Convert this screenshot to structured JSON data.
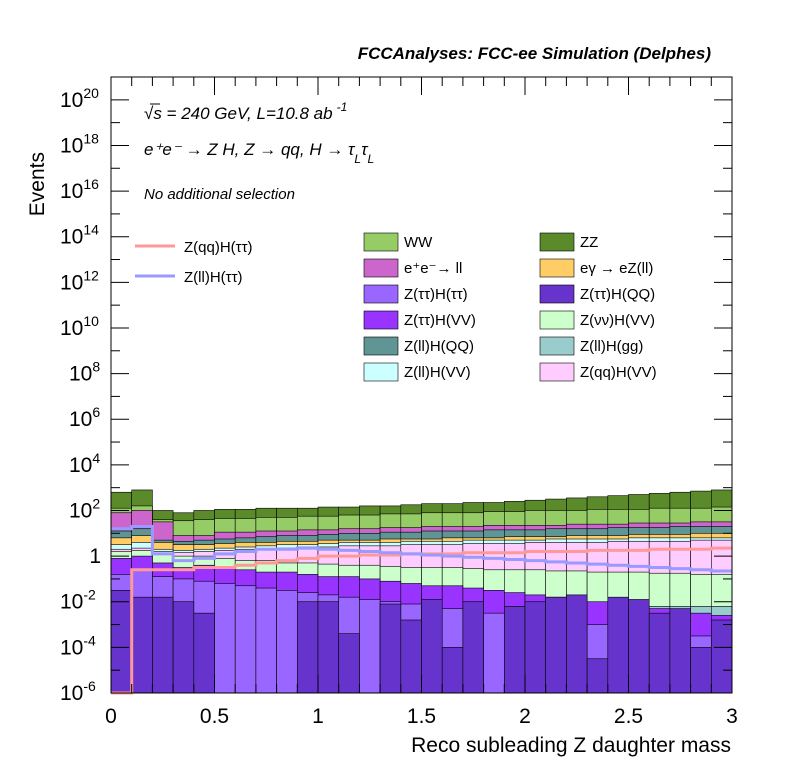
{
  "chart_data": {
    "type": "area",
    "header": "FCCAnalyses: FCC-ee Simulation (Delphes)",
    "annotation_energy": "√s = 240 GeV, L=10.8 ab",
    "annotation_energy_exp": "-1",
    "annotation_process": "e⁺e⁻ → Z H, Z → qq, H → τ",
    "annotation_process_sub": "L",
    "annotation_process_tau2": "τ",
    "annotation_selection": "No additional selection",
    "xlabel": "Reco subleading Z daughter mass",
    "ylabel": "Events",
    "xlim": [
      0,
      3
    ],
    "ylog": true,
    "ylim_exp": [
      -6,
      21
    ],
    "y_tick_exponents": [
      -6,
      -4,
      -2,
      0,
      2,
      4,
      6,
      8,
      10,
      12,
      14,
      16,
      18,
      20
    ],
    "y_tick_labels": {
      "-6": [
        "10",
        "-6"
      ],
      "-4": [
        "10",
        "-4"
      ],
      "-2": [
        "10",
        "-2"
      ],
      "0": [
        "1",
        ""
      ],
      "2": [
        "10",
        "2"
      ],
      "4": [
        "10",
        "4"
      ],
      "6": [
        "10",
        "6"
      ],
      "8": [
        "10",
        "8"
      ],
      "10": [
        "10",
        "10"
      ],
      "12": [
        "10",
        "12"
      ],
      "14": [
        "10",
        "14"
      ],
      "16": [
        "10",
        "16"
      ],
      "18": [
        "10",
        "18"
      ],
      "20": [
        "10",
        "20"
      ]
    },
    "x_ticks": [
      0,
      0.5,
      1,
      1.5,
      2,
      2.5,
      3
    ],
    "x_tick_labels": [
      "0",
      "0.5",
      "1",
      "1.5",
      "2",
      "2.5",
      "3"
    ],
    "n_bins": 30,
    "stack_series": [
      {
        "name": "ZZ",
        "color": "#5a8a2a",
        "log_top": [
          2.8,
          2.9,
          2.0,
          1.9,
          2.0,
          2.05,
          2.05,
          2.1,
          2.1,
          2.1,
          2.15,
          2.15,
          2.2,
          2.2,
          2.25,
          2.3,
          2.3,
          2.35,
          2.35,
          2.4,
          2.45,
          2.5,
          2.55,
          2.6,
          2.65,
          2.7,
          2.75,
          2.8,
          2.85,
          2.9
        ]
      },
      {
        "name": "WW",
        "color": "#96cc66",
        "log_top": [
          2.1,
          2.2,
          1.6,
          1.55,
          1.6,
          1.65,
          1.65,
          1.7,
          1.7,
          1.75,
          1.75,
          1.8,
          1.8,
          1.85,
          1.85,
          1.9,
          1.9,
          1.9,
          1.95,
          1.95,
          2.0,
          2.0,
          2.0,
          2.05,
          2.05,
          2.05,
          2.1,
          2.1,
          2.1,
          2.15
        ]
      },
      {
        "name": "e⁺e⁻→ ll",
        "color": "#cc66cc",
        "log_top": [
          1.9,
          2.0,
          1.5,
          0.9,
          0.9,
          1.05,
          1.05,
          1.1,
          1.1,
          1.15,
          1.15,
          1.2,
          1.2,
          1.25,
          1.25,
          1.3,
          1.3,
          1.3,
          1.35,
          1.35,
          1.35,
          1.35,
          1.4,
          1.4,
          1.4,
          1.45,
          1.45,
          1.45,
          1.5,
          1.5
        ]
      },
      {
        "name": "Z(ll)H(QQ)",
        "color": "#5f9595",
        "log_top": [
          1.1,
          1.2,
          0.7,
          0.65,
          0.7,
          0.75,
          0.8,
          0.85,
          0.9,
          0.9,
          0.95,
          1.0,
          1.0,
          1.05,
          1.05,
          1.1,
          1.1,
          1.1,
          1.15,
          1.15,
          1.15,
          1.2,
          1.2,
          1.2,
          1.25,
          1.25,
          1.25,
          1.3,
          1.3,
          1.3
        ]
      },
      {
        "name": "eγ → eZ(ll)",
        "color": "#ffcc66",
        "log_top": [
          0.8,
          0.9,
          0.6,
          0.5,
          0.5,
          0.55,
          0.6,
          0.6,
          0.65,
          0.65,
          0.7,
          0.7,
          0.7,
          0.75,
          0.75,
          0.75,
          0.8,
          0.8,
          0.8,
          0.85,
          0.85,
          0.85,
          0.9,
          0.9,
          0.9,
          0.95,
          0.95,
          0.95,
          1.0,
          1.0
        ]
      },
      {
        "name": "Z(ll)H(VV)",
        "color": "#ccffff",
        "log_top": [
          0.5,
          0.6,
          0.3,
          0.25,
          0.3,
          0.35,
          0.4,
          0.45,
          0.5,
          0.5,
          0.55,
          0.6,
          0.6,
          0.6,
          0.65,
          0.65,
          0.65,
          0.7,
          0.7,
          0.7,
          0.7,
          0.75,
          0.75,
          0.75,
          0.75,
          0.8,
          0.8,
          0.8,
          0.8,
          0.8
        ]
      },
      {
        "name": "Z(qq)H(VV)",
        "color": "#ffccff",
        "log_top": [
          0.3,
          0.35,
          0.2,
          0.15,
          0.2,
          0.25,
          0.3,
          0.3,
          0.35,
          0.4,
          0.4,
          0.45,
          0.45,
          0.45,
          0.5,
          0.5,
          0.5,
          0.55,
          0.55,
          0.55,
          0.6,
          0.6,
          0.6,
          0.6,
          0.65,
          0.65,
          0.65,
          0.65,
          0.7,
          0.7
        ]
      },
      {
        "name": "Z(νν)H(VV)",
        "color": "#ccffcc",
        "log_top": [
          0.2,
          0.25,
          0.1,
          0.0,
          0.0,
          -0.1,
          -0.2,
          -0.2,
          -0.3,
          -0.3,
          -0.35,
          -0.4,
          -0.4,
          -0.45,
          -0.5,
          -0.5,
          -0.5,
          -0.55,
          -0.6,
          -0.6,
          -0.6,
          -0.65,
          -0.65,
          -0.7,
          -0.7,
          -0.7,
          -0.75,
          -0.75,
          -0.8,
          -0.8
        ]
      },
      {
        "name": "Z(ll)H(gg)",
        "color": "#99cccc",
        "log_top": [
          -0.6,
          -0.3,
          -1.0,
          -1.2,
          -1.4,
          -1.5,
          -1.6,
          -1.6,
          -1.7,
          -1.7,
          -1.7,
          -1.8,
          -1.8,
          -1.8,
          -1.8,
          -1.9,
          -1.9,
          -1.9,
          -2.0,
          -2.0,
          -2.0,
          -2.0,
          -2.0,
          -2.1,
          -2.1,
          -2.1,
          -2.2,
          -2.2,
          -2.2,
          -2.2
        ]
      },
      {
        "name": "Z(ττ)H(VV)",
        "color": "#9933ff",
        "log_top": [
          -0.1,
          0.0,
          -0.3,
          -0.5,
          -0.4,
          -0.5,
          -0.6,
          -0.7,
          -0.7,
          -0.8,
          -0.9,
          -0.9,
          -1.0,
          -1.1,
          -1.2,
          -1.3,
          -1.3,
          -1.4,
          -1.5,
          -1.6,
          -1.7,
          -1.8,
          -1.9,
          -2.0,
          -2.1,
          -2.2,
          -2.3,
          -2.4,
          -2.5,
          -2.6
        ]
      },
      {
        "name": "Z(ττ)H(ττ)",
        "color": "#9966ff",
        "log_top": [
          -0.8,
          -0.6,
          -0.9,
          -1.0,
          -1.1,
          -1.2,
          -1.3,
          -1.4,
          -1.5,
          -1.6,
          -1.7,
          -1.8,
          -1.9,
          -2.0,
          -2.1,
          -2.2,
          -2.3,
          -2.4,
          -2.5,
          -2.6,
          -2.7,
          -2.8,
          -2.9,
          -3.0,
          -3.1,
          -3.2,
          -3.3,
          -3.4,
          -3.5,
          -3.6
        ]
      },
      {
        "name": "Z(ττ)H(QQ)",
        "color": "#6633cc",
        "log_top": [
          -1.5,
          -1.8,
          -1.8,
          -2.0,
          -2.5,
          -6.0,
          -6.0,
          -6.0,
          -6.0,
          -2.0,
          -2.0,
          -3.4,
          -6.0,
          -2.1,
          -2.8,
          -1.9,
          -4.0,
          -2.0,
          -6.0,
          -2.2,
          -2.0,
          -1.8,
          -1.7,
          -4.5,
          -1.8,
          -1.9,
          -2.5,
          -2.3,
          -4.0,
          -2.8
        ]
      }
    ],
    "line_series": [
      {
        "name": "Z(qq)H(ττ)",
        "color": "#ff9999",
        "log_values": [
          -6.0,
          -0.6,
          -0.6,
          -0.6,
          -0.5,
          -0.5,
          -0.4,
          -0.3,
          -0.2,
          -0.1,
          0.0,
          0.0,
          0.05,
          0.05,
          0.1,
          0.1,
          0.1,
          0.15,
          0.15,
          0.15,
          0.2,
          0.2,
          0.2,
          0.25,
          0.25,
          0.25,
          0.3,
          0.3,
          0.3,
          0.35
        ]
      },
      {
        "name": "Z(ll)H(ττ)",
        "color": "#9999ff",
        "log_values": [
          1.2,
          1.3,
          0.1,
          -0.2,
          -0.1,
          0.1,
          0.2,
          0.3,
          0.3,
          0.35,
          0.3,
          0.25,
          0.2,
          0.15,
          0.1,
          0.05,
          0.0,
          -0.05,
          -0.1,
          -0.15,
          -0.2,
          -0.25,
          -0.3,
          -0.35,
          -0.4,
          -0.45,
          -0.5,
          -0.55,
          -0.6,
          -0.65
        ]
      }
    ],
    "legend_lines": [
      "Z(qq)H(ττ)",
      "Z(ll)H(ττ)"
    ],
    "legend_boxes": [
      {
        "name": "WW",
        "color": "#96cc66"
      },
      {
        "name": "ZZ",
        "color": "#5a8a2a"
      },
      {
        "name": "e⁺e⁻→ ll",
        "color": "#cc66cc"
      },
      {
        "name": "eγ → eZ(ll)",
        "color": "#ffcc66"
      },
      {
        "name": "Z(ττ)H(ττ)",
        "color": "#9966ff"
      },
      {
        "name": "Z(ττ)H(QQ)",
        "color": "#6633cc"
      },
      {
        "name": "Z(ττ)H(VV)",
        "color": "#9933ff"
      },
      {
        "name": "Z(νν)H(VV)",
        "color": "#ccffcc"
      },
      {
        "name": "Z(ll)H(QQ)",
        "color": "#5f9595"
      },
      {
        "name": "Z(ll)H(gg)",
        "color": "#99cccc"
      },
      {
        "name": "Z(ll)H(VV)",
        "color": "#ccffff"
      },
      {
        "name": "Z(qq)H(VV)",
        "color": "#ffccff"
      }
    ]
  }
}
